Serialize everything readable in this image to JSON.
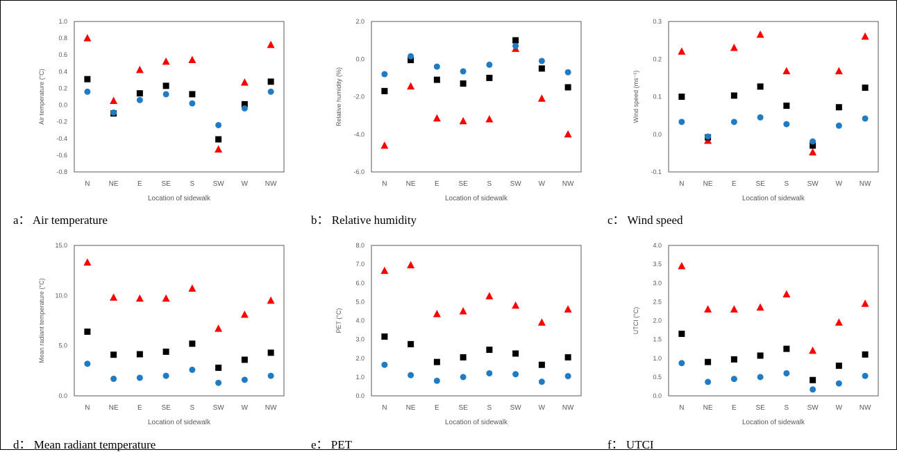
{
  "colors": {
    "triangle": "#FF0000",
    "square": "#000000",
    "circle": "#1F7BC4",
    "axis": "#595959"
  },
  "chart_data": [
    {
      "type": "scatter",
      "caption": "a： Air temperature",
      "ylabel": "Air temperature (°C)",
      "xlabel": "Location of sidewalk",
      "categories": [
        "N",
        "NE",
        "E",
        "SE",
        "S",
        "SW",
        "W",
        "NW"
      ],
      "ylim": [
        -0.8,
        1.0
      ],
      "yticks": [
        "-0.8",
        "-0.6",
        "-0.4",
        "-0.2",
        "0.0",
        "0.2",
        "0.4",
        "0.6",
        "0.8",
        "1.0"
      ],
      "series": [
        {
          "marker": "triangle",
          "values": [
            0.8,
            0.05,
            0.42,
            0.52,
            0.54,
            -0.53,
            0.27,
            0.72
          ]
        },
        {
          "marker": "square",
          "values": [
            0.31,
            -0.1,
            0.14,
            0.23,
            0.13,
            -0.41,
            0.01,
            0.28
          ]
        },
        {
          "marker": "circle",
          "values": [
            0.16,
            -0.09,
            0.06,
            0.13,
            0.02,
            -0.24,
            -0.04,
            0.16
          ]
        }
      ]
    },
    {
      "type": "scatter",
      "caption": "b： Relative humidity",
      "ylabel": "Relative humidity (%)",
      "xlabel": "Location of sidewalk",
      "categories": [
        "N",
        "NE",
        "E",
        "SE",
        "S",
        "SW",
        "W",
        "NW"
      ],
      "ylim": [
        -6.0,
        2.0
      ],
      "yticks": [
        "-6.0",
        "-4.0",
        "-2.0",
        "0.0",
        "2.0"
      ],
      "series": [
        {
          "marker": "triangle",
          "values": [
            -4.6,
            -1.45,
            -3.15,
            -3.3,
            -3.2,
            0.55,
            -2.1,
            -4.0
          ]
        },
        {
          "marker": "square",
          "values": [
            -1.7,
            -0.05,
            -1.1,
            -1.3,
            -1.0,
            1.0,
            -0.5,
            -1.5
          ]
        },
        {
          "marker": "circle",
          "values": [
            -0.8,
            0.15,
            -0.4,
            -0.65,
            -0.3,
            0.7,
            -0.1,
            -0.7
          ]
        }
      ]
    },
    {
      "type": "scatter",
      "caption": "c： Wind speed",
      "ylabel": "Wind speed (ms⁻¹)",
      "xlabel": "Location of sidewalk",
      "categories": [
        "N",
        "NE",
        "E",
        "SE",
        "S",
        "SW",
        "W",
        "NW"
      ],
      "ylim": [
        -0.1,
        0.3
      ],
      "yticks": [
        "-0.1",
        "0.0",
        "0.1",
        "0.2",
        "0.3"
      ],
      "series": [
        {
          "marker": "triangle",
          "values": [
            0.22,
            -0.017,
            0.23,
            0.265,
            0.168,
            -0.048,
            0.168,
            0.26
          ]
        },
        {
          "marker": "square",
          "values": [
            0.1,
            -0.008,
            0.103,
            0.127,
            0.076,
            -0.03,
            0.072,
            0.124
          ]
        },
        {
          "marker": "circle",
          "values": [
            0.033,
            -0.006,
            0.033,
            0.045,
            0.027,
            -0.019,
            0.023,
            0.042
          ]
        }
      ]
    },
    {
      "type": "scatter",
      "caption": "d： Mean radiant temperature",
      "ylabel": "Mean radiant temperature (°C)",
      "xlabel": "Location of sidewalk",
      "categories": [
        "N",
        "NE",
        "E",
        "SE",
        "S",
        "SW",
        "W",
        "NW"
      ],
      "ylim": [
        0.0,
        15.0
      ],
      "yticks": [
        "0.0",
        "5.0",
        "10.0",
        "15.0"
      ],
      "series": [
        {
          "marker": "triangle",
          "values": [
            13.3,
            9.8,
            9.7,
            9.7,
            10.7,
            6.7,
            8.1,
            9.5
          ]
        },
        {
          "marker": "square",
          "values": [
            6.4,
            4.1,
            4.15,
            4.4,
            5.2,
            2.8,
            3.6,
            4.3
          ]
        },
        {
          "marker": "circle",
          "values": [
            3.2,
            1.7,
            1.8,
            2.0,
            2.6,
            1.3,
            1.6,
            2.0
          ]
        }
      ]
    },
    {
      "type": "scatter",
      "caption": "e： PET",
      "ylabel": "PET (°C)",
      "xlabel": "Location of sidewalk",
      "categories": [
        "N",
        "NE",
        "E",
        "SE",
        "S",
        "SW",
        "W",
        "NW"
      ],
      "ylim": [
        0.0,
        8.0
      ],
      "yticks": [
        "0.0",
        "1.0",
        "2.0",
        "3.0",
        "4.0",
        "5.0",
        "6.0",
        "7.0",
        "8.0"
      ],
      "series": [
        {
          "marker": "triangle",
          "values": [
            6.65,
            6.95,
            4.35,
            4.5,
            5.3,
            4.8,
            3.9,
            4.6
          ]
        },
        {
          "marker": "square",
          "values": [
            3.15,
            2.75,
            1.8,
            2.05,
            2.45,
            2.25,
            1.65,
            2.05
          ]
        },
        {
          "marker": "circle",
          "values": [
            1.65,
            1.1,
            0.8,
            1.0,
            1.2,
            1.15,
            0.75,
            1.05
          ]
        }
      ]
    },
    {
      "type": "scatter",
      "caption": "f： UTCI",
      "ylabel": "UTCI (°C)",
      "xlabel": "Location of sidewalk",
      "categories": [
        "N",
        "NE",
        "E",
        "SE",
        "S",
        "SW",
        "W",
        "NW"
      ],
      "ylim": [
        0.0,
        4.0
      ],
      "yticks": [
        "0.0",
        "0.5",
        "1.0",
        "1.5",
        "2.0",
        "2.5",
        "3.0",
        "3.5",
        "4.0"
      ],
      "series": [
        {
          "marker": "triangle",
          "values": [
            3.45,
            2.3,
            2.3,
            2.35,
            2.7,
            1.2,
            1.95,
            2.45
          ]
        },
        {
          "marker": "square",
          "values": [
            1.65,
            0.9,
            0.97,
            1.07,
            1.25,
            0.42,
            0.8,
            1.1
          ]
        },
        {
          "marker": "circle",
          "values": [
            0.87,
            0.37,
            0.45,
            0.5,
            0.6,
            0.17,
            0.33,
            0.53
          ]
        }
      ]
    }
  ]
}
